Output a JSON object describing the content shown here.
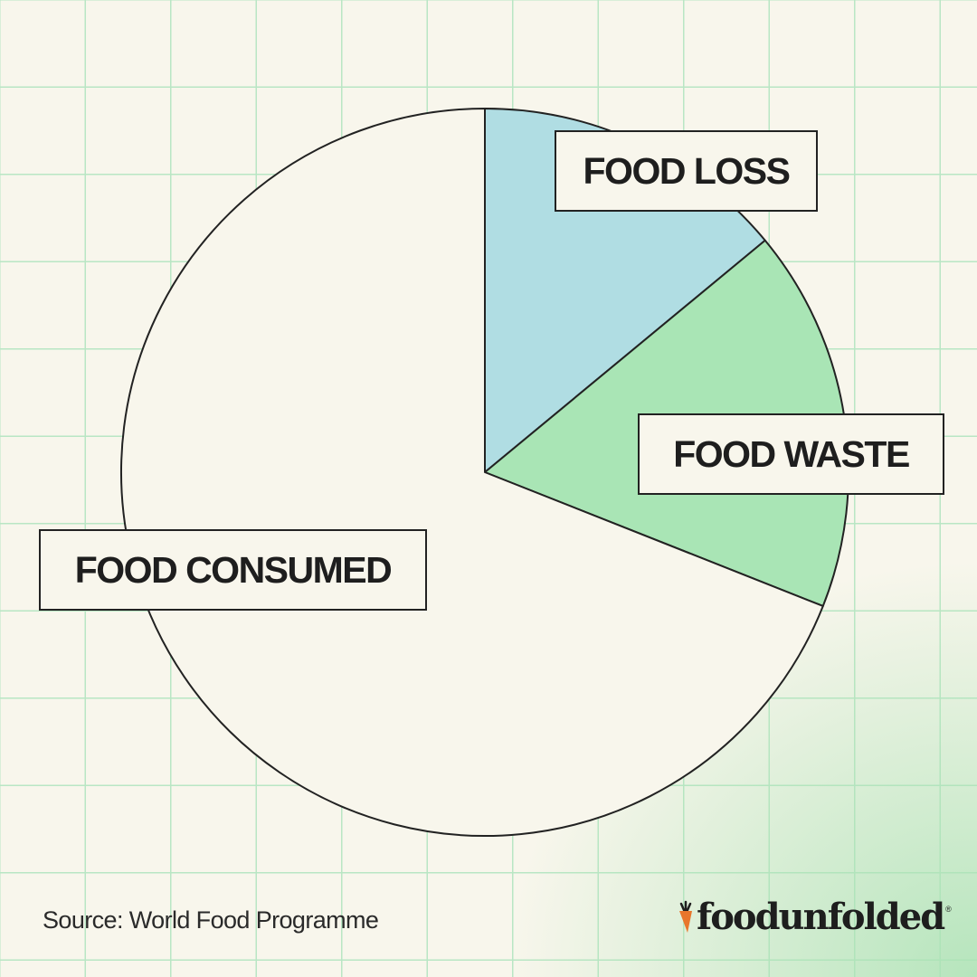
{
  "chart_data": {
    "type": "pie",
    "slices": [
      {
        "label": "FOOD LOSS",
        "value": 14,
        "color": "#b0dde3"
      },
      {
        "label": "FOOD WASTE",
        "value": 17,
        "color": "#a9e5b5"
      },
      {
        "label": "FOOD CONSUMED",
        "value": 69,
        "color": "#f8f6ec"
      }
    ],
    "start_angle": "12 o'clock, clockwise"
  },
  "footer": {
    "source": "Source: World Food Programme",
    "brand": "foodunfolded",
    "brand_reg": "®"
  },
  "colors": {
    "background": "#f8f6ec",
    "grid": "#b9e6c4",
    "outline": "#222222",
    "brand_icon": "#e8762c"
  },
  "icons": [
    "carrot-icon"
  ]
}
